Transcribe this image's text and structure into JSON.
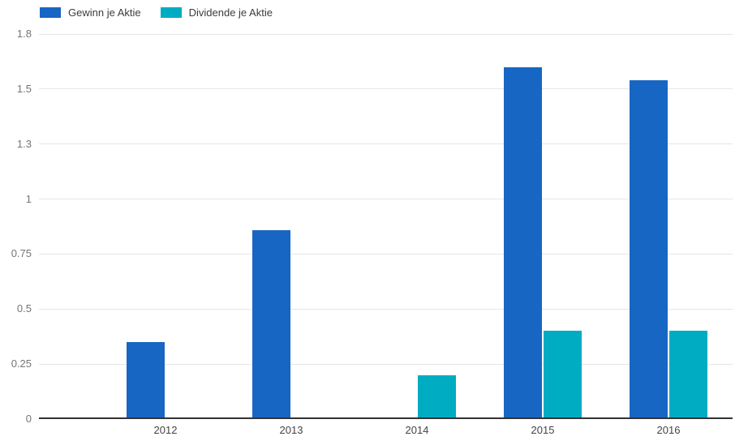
{
  "chart_data": {
    "type": "bar",
    "title": "",
    "categories": [
      "2012",
      "2013",
      "2014",
      "2015",
      "2016"
    ],
    "series": [
      {
        "name": "Gewinn je Aktie",
        "color": "#1766C4",
        "values": [
          0.35,
          0.86,
          0,
          1.6,
          1.54
        ]
      },
      {
        "name": "Dividende je Aktie",
        "color": "#00ACC2",
        "values": [
          0,
          0,
          0.2,
          0.4,
          0.4
        ]
      }
    ],
    "ylim": [
      0,
      1.75
    ],
    "ytick_values": [
      0,
      0.25,
      0.5,
      0.75,
      1,
      1.25,
      1.5,
      1.75
    ],
    "ytick_labels": [
      "0",
      "0.25",
      "0.5",
      "0.75",
      "1",
      "1.3",
      "1.5",
      "1.8"
    ],
    "xlabel": "",
    "ylabel": "",
    "grid": true,
    "legend_position": "top-left"
  },
  "colors": {
    "series_blue": "#1766C4",
    "series_teal": "#00ACC2",
    "grid": "#E6E6E6",
    "axis_line": "#333333",
    "y_label_text": "#757575",
    "x_label_text": "#444444",
    "legend_text": "#3C3C3C",
    "background": "#FFFFFF"
  }
}
